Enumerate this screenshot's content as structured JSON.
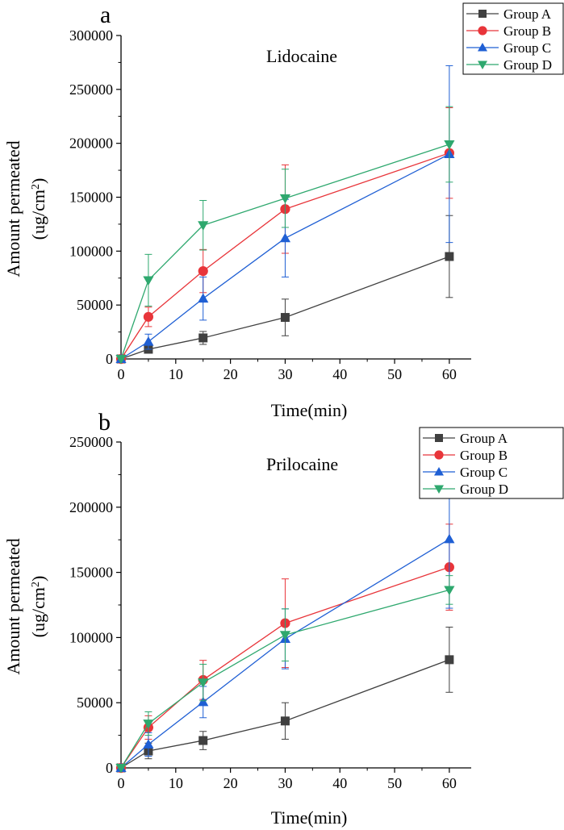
{
  "chart_data": [
    {
      "type": "line",
      "panel_label": "a",
      "title": "Lidocaine",
      "xlabel": "Time(min)",
      "ylabel_line1": "Amount permeated",
      "ylabel_line2": "(ug/cm",
      "ylabel_sup": "2",
      "ylabel_close": ")",
      "xlim": [
        0,
        64
      ],
      "ylim": [
        0,
        300000
      ],
      "xticks": [
        0,
        10,
        20,
        30,
        40,
        50,
        60
      ],
      "yticks": [
        0,
        50000,
        100000,
        150000,
        200000,
        250000,
        300000
      ],
      "x": [
        0,
        5,
        15,
        30,
        60
      ],
      "legend_position": "top-right",
      "series": [
        {
          "name": "Group A",
          "marker": "square",
          "color": "#404040",
          "values": [
            0,
            9000,
            19500,
            38500,
            95000
          ],
          "errors": [
            0,
            2500,
            6000,
            17000,
            38000
          ]
        },
        {
          "name": "Group B",
          "marker": "circle",
          "color": "#e8353a",
          "values": [
            0,
            39000,
            81500,
            139000,
            191000
          ],
          "errors": [
            0,
            9000,
            20000,
            41000,
            42000
          ]
        },
        {
          "name": "Group C",
          "marker": "triangle-up",
          "color": "#1f5fd4",
          "values": [
            0,
            16000,
            56000,
            112000,
            190000
          ],
          "errors": [
            0,
            7000,
            20000,
            36000,
            82000
          ]
        },
        {
          "name": "Group D",
          "marker": "triangle-down",
          "color": "#2ea86e",
          "values": [
            0,
            73000,
            124000,
            149000,
            199000
          ],
          "errors": [
            0,
            24000,
            23000,
            27000,
            35000
          ]
        }
      ]
    },
    {
      "type": "line",
      "panel_label": "b",
      "title": "Prilocaine",
      "xlabel": "Time(min)",
      "ylabel_line1": "Amount permeated",
      "ylabel_line2": "(ug/cm",
      "ylabel_sup": "2",
      "ylabel_close": ")",
      "xlim": [
        0,
        64
      ],
      "ylim": [
        0,
        250000
      ],
      "xticks": [
        0,
        10,
        20,
        30,
        40,
        50,
        60
      ],
      "yticks": [
        0,
        50000,
        100000,
        150000,
        200000,
        250000
      ],
      "x": [
        0,
        5,
        15,
        30,
        60
      ],
      "legend_position": "top-right",
      "series": [
        {
          "name": "Group A",
          "marker": "square",
          "color": "#404040",
          "values": [
            0,
            13000,
            21000,
            36000,
            83000
          ],
          "errors": [
            0,
            6000,
            7000,
            14000,
            25000
          ]
        },
        {
          "name": "Group B",
          "marker": "circle",
          "color": "#e8353a",
          "values": [
            0,
            31000,
            67500,
            111000,
            154000
          ],
          "errors": [
            0,
            9000,
            15000,
            34000,
            33000
          ]
        },
        {
          "name": "Group C",
          "marker": "triangle-up",
          "color": "#1f5fd4",
          "values": [
            0,
            18000,
            50500,
            99000,
            175500
          ],
          "errors": [
            0,
            9000,
            12000,
            23000,
            53000
          ]
        },
        {
          "name": "Group D",
          "marker": "triangle-down",
          "color": "#2ea86e",
          "values": [
            0,
            34000,
            65500,
            102000,
            136500
          ],
          "errors": [
            0,
            9000,
            14000,
            20000,
            11000
          ]
        }
      ]
    }
  ]
}
